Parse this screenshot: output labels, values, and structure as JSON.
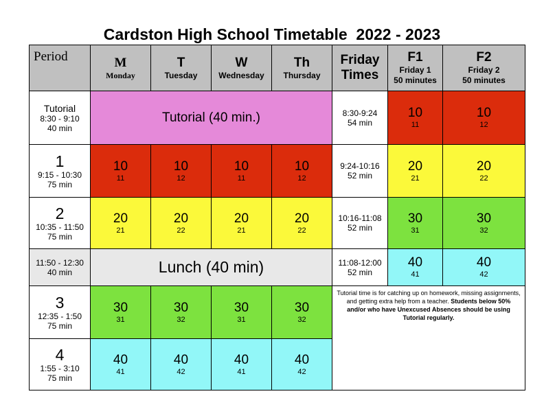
{
  "title": "Cardston High School Timetable  2022 - 2023",
  "header": {
    "period": "Period",
    "days": [
      {
        "big": "M",
        "small": "Monday"
      },
      {
        "big": "T",
        "small": "Tuesday"
      },
      {
        "big": "W",
        "small": "Wednesday"
      },
      {
        "big": "Th",
        "small": "Thursday"
      }
    ],
    "friday_times": [
      "Friday",
      "Times"
    ],
    "f1": {
      "big": "F1",
      "line1": "Friday 1",
      "line2": "50 minutes"
    },
    "f2": {
      "big": "F2",
      "line1": "Friday 2",
      "line2": "50 minutes"
    }
  },
  "rows": {
    "tutorial": {
      "label": "Tutorial",
      "time": "8:30 - 9:10",
      "length": "40 min",
      "block": "Tutorial (40 min.)"
    },
    "p1": {
      "num": "1",
      "time": "9:15 - 10:30",
      "length": "75 min",
      "cells": [
        {
          "main": "10",
          "sub": "11"
        },
        {
          "main": "10",
          "sub": "12"
        },
        {
          "main": "10",
          "sub": "11"
        },
        {
          "main": "10",
          "sub": "12"
        }
      ]
    },
    "p2": {
      "num": "2",
      "time": "10:35 - 11:50",
      "length": "75 min",
      "cells": [
        {
          "main": "20",
          "sub": "21"
        },
        {
          "main": "20",
          "sub": "22"
        },
        {
          "main": "20",
          "sub": "21"
        },
        {
          "main": "20",
          "sub": "22"
        }
      ]
    },
    "lunch": {
      "time": "11:50 - 12:30",
      "length": "40 min",
      "block": "Lunch (40 min)"
    },
    "p3": {
      "num": "3",
      "time": "12:35 - 1:50",
      "length": "75 min",
      "cells": [
        {
          "main": "30",
          "sub": "31"
        },
        {
          "main": "30",
          "sub": "32"
        },
        {
          "main": "30",
          "sub": "31"
        },
        {
          "main": "30",
          "sub": "32"
        }
      ]
    },
    "p4": {
      "num": "4",
      "time": "1:55 - 3:10",
      "length": "75 min",
      "cells": [
        {
          "main": "40",
          "sub": "41"
        },
        {
          "main": "40",
          "sub": "42"
        },
        {
          "main": "40",
          "sub": "41"
        },
        {
          "main": "40",
          "sub": "42"
        }
      ]
    }
  },
  "friday": [
    {
      "time": "8:30-9:24",
      "length": "54 min",
      "f1": {
        "main": "10",
        "sub": "11"
      },
      "f2": {
        "main": "10",
        "sub": "12"
      }
    },
    {
      "time": "9:24-10:16",
      "length": "52 min",
      "f1": {
        "main": "20",
        "sub": "21"
      },
      "f2": {
        "main": "20",
        "sub": "22"
      }
    },
    {
      "time": "10:16-11:08",
      "length": "52 min",
      "f1": {
        "main": "30",
        "sub": "31"
      },
      "f2": {
        "main": "30",
        "sub": "32"
      }
    },
    {
      "time": "11:08-12:00",
      "length": "52 min",
      "f1": {
        "main": "40",
        "sub": "41"
      },
      "f2": {
        "main": "40",
        "sub": "42"
      }
    }
  ],
  "note": {
    "normal": "Tutorial time is for catching up on homework, missing assignments, and getting extra help from a teacher.",
    "bold": "Students below 50% and/or who have Unexcused Absences should be using Tutorial regularly."
  },
  "colors": {
    "header": "#c0c0c0",
    "tutorial": "#e589d9",
    "lunch": "#e8e8e8",
    "block10": "#db2c0c",
    "block20": "#fbf93a",
    "block30": "#7de23f",
    "block40": "#92f7f8"
  }
}
